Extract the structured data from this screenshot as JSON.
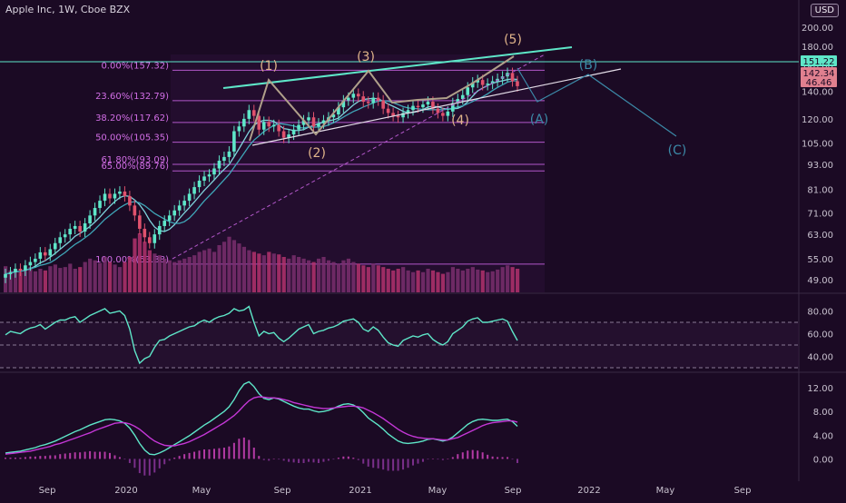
{
  "header": {
    "title": "Apple Inc, 1W, Cboe BZX",
    "currency": "USD"
  },
  "chart_data": [
    {
      "type": "candlestick",
      "title": "Apple Inc, 1W, Cboe BZX",
      "x_ticks": [
        "Sep",
        "2020",
        "May",
        "Sep",
        "2021",
        "May",
        "Sep",
        "2022",
        "May",
        "Sep"
      ],
      "y_ticks": [
        49.0,
        55.0,
        63.0,
        71.0,
        81.0,
        93.0,
        105.0,
        120.0,
        140.0,
        160.0,
        180.0,
        200.0
      ],
      "y_scale": "log",
      "ylim": [
        47,
        200
      ],
      "price_labels": [
        {
          "value": "151.22",
          "kind": "last_price",
          "color": "#5ee6c8"
        },
        {
          "value": "142.34",
          "kind": "indicator",
          "color": "#e0808f"
        },
        {
          "value": "46.46",
          "kind": "indicator",
          "color": "#e0808f"
        }
      ],
      "fibonacci_levels": [
        {
          "label": "0.00%(157.32)",
          "value": 157.32
        },
        {
          "label": "23.60%(132.79)",
          "value": 132.79
        },
        {
          "label": "38.20%(117.62)",
          "value": 117.62
        },
        {
          "label": "50.00%(105.35)",
          "value": 105.35
        },
        {
          "label": "61.80%(93.09)",
          "value": 93.09
        },
        {
          "label": "65.00%(89.76)",
          "value": 89.76
        },
        {
          "label": "100.00%(53.38)",
          "value": 53.38
        }
      ],
      "wave_labels": [
        "(1)",
        "(2)",
        "(3)",
        "(4)",
        "(5)",
        "(A)",
        "(B)",
        "(C)"
      ],
      "weekly_close": [
        50.5,
        51,
        52,
        51.5,
        53,
        54,
        55,
        57,
        56,
        58,
        60,
        62,
        63,
        65,
        66,
        64,
        67,
        70,
        73,
        76,
        79,
        77,
        79,
        80,
        78,
        74,
        70,
        65,
        62,
        60,
        63,
        66,
        68,
        70,
        72,
        74,
        76,
        79,
        82,
        85,
        87,
        88,
        91,
        95,
        97,
        100,
        112,
        115,
        120,
        126,
        122,
        113,
        118,
        115,
        116,
        112,
        108,
        110,
        113,
        116,
        119,
        121,
        115,
        117,
        119,
        121,
        123,
        128,
        133,
        135,
        138,
        136,
        132,
        131,
        135,
        133,
        127,
        124,
        122,
        121,
        124,
        126,
        129,
        128,
        130,
        132,
        127,
        124,
        122,
        125,
        131,
        134,
        137,
        143,
        147,
        149,
        145,
        146,
        148,
        150,
        152,
        155,
        148,
        144
      ],
      "weekly_volume": [
        31,
        26,
        28,
        24,
        27,
        30,
        25,
        28,
        26,
        31,
        33,
        29,
        30,
        34,
        28,
        30,
        36,
        40,
        38,
        35,
        42,
        36,
        33,
        30,
        36,
        42,
        64,
        70,
        60,
        50,
        46,
        44,
        40,
        38,
        36,
        38,
        40,
        42,
        44,
        48,
        50,
        52,
        48,
        56,
        60,
        66,
        62,
        58,
        54,
        50,
        48,
        46,
        44,
        48,
        46,
        45,
        42,
        40,
        44,
        42,
        40,
        38,
        36,
        40,
        42,
        38,
        36,
        34,
        38,
        40,
        36,
        34,
        32,
        30,
        34,
        32,
        30,
        28,
        26,
        28,
        30,
        26,
        24,
        26,
        24,
        28,
        26,
        24,
        22,
        24,
        30,
        28,
        26,
        28,
        30,
        27,
        26,
        24,
        25,
        27,
        30,
        32,
        30,
        28
      ],
      "rsi": {
        "levels": [
          70,
          50,
          30
        ],
        "ylim": [
          30,
          90
        ],
        "y_ticks": [
          40.0,
          60.0,
          80.0
        ],
        "values": [
          59,
          62,
          61,
          60,
          63,
          65,
          66,
          68,
          64,
          67,
          70,
          72,
          72,
          74,
          75,
          70,
          73,
          76,
          78,
          80,
          82,
          78,
          79,
          80,
          76,
          64,
          45,
          34,
          38,
          40,
          48,
          54,
          55,
          58,
          60,
          62,
          64,
          66,
          67,
          70,
          72,
          70,
          73,
          75,
          76,
          78,
          82,
          80,
          81,
          84,
          70,
          58,
          62,
          60,
          61,
          56,
          53,
          56,
          60,
          64,
          66,
          68,
          60,
          62,
          63,
          65,
          66,
          68,
          71,
          72,
          73,
          70,
          64,
          62,
          66,
          63,
          57,
          52,
          50,
          49,
          54,
          56,
          58,
          57,
          59,
          60,
          55,
          52,
          50,
          53,
          60,
          63,
          66,
          71,
          73,
          74,
          70,
          70,
          71,
          72,
          73,
          71,
          62,
          54
        ]
      },
      "macd": {
        "y_ticks": [
          0.0,
          4.0,
          8.0,
          12.0
        ],
        "ylim": [
          -3,
          14
        ],
        "macd": [
          1,
          1.1,
          1.2,
          1.3,
          1.5,
          1.7,
          1.9,
          2.2,
          2.4,
          2.7,
          3,
          3.4,
          3.8,
          4.2,
          4.6,
          4.9,
          5.3,
          5.7,
          6,
          6.3,
          6.6,
          6.7,
          6.6,
          6.4,
          6,
          5.2,
          4,
          2.6,
          1.5,
          0.8,
          0.7,
          1,
          1.4,
          1.9,
          2.4,
          2.9,
          3.4,
          3.9,
          4.5,
          5.1,
          5.7,
          6.2,
          6.8,
          7.4,
          8,
          8.8,
          10,
          11.5,
          12.6,
          13,
          12.2,
          11,
          10.2,
          10,
          10.3,
          10.1,
          9.7,
          9.3,
          8.9,
          8.6,
          8.4,
          8.4,
          8.1,
          7.9,
          8,
          8.2,
          8.5,
          8.9,
          9.2,
          9.3,
          9.1,
          8.6,
          7.8,
          6.9,
          6.3,
          5.7,
          5,
          4.2,
          3.6,
          3,
          2.7,
          2.6,
          2.7,
          2.8,
          3,
          3.3,
          3.4,
          3.2,
          3,
          3.2,
          3.7,
          4.4,
          5.1,
          5.8,
          6.3,
          6.6,
          6.7,
          6.6,
          6.5,
          6.5,
          6.6,
          6.7,
          6.3,
          5.5
        ],
        "signal": [
          0.8,
          0.9,
          1,
          1.1,
          1.2,
          1.3,
          1.5,
          1.7,
          1.9,
          2.1,
          2.4,
          2.6,
          2.9,
          3.2,
          3.5,
          3.8,
          4.1,
          4.4,
          4.8,
          5.1,
          5.4,
          5.7,
          6,
          6.1,
          6.1,
          5.9,
          5.5,
          5,
          4.3,
          3.6,
          3,
          2.6,
          2.3,
          2.2,
          2.2,
          2.4,
          2.6,
          2.9,
          3.3,
          3.7,
          4.1,
          4.6,
          5.1,
          5.6,
          6.1,
          6.7,
          7.3,
          8.1,
          9,
          9.8,
          10.3,
          10.5,
          10.4,
          10.3,
          10.3,
          10.2,
          10,
          9.8,
          9.5,
          9.3,
          9.1,
          8.9,
          8.7,
          8.6,
          8.5,
          8.5,
          8.6,
          8.7,
          8.8,
          8.9,
          8.9,
          8.8,
          8.6,
          8.2,
          7.8,
          7.3,
          6.8,
          6.2,
          5.6,
          5,
          4.5,
          4.1,
          3.8,
          3.6,
          3.5,
          3.4,
          3.4,
          3.3,
          3.2,
          3.2,
          3.4,
          3.6,
          4,
          4.4,
          4.8,
          5.2,
          5.6,
          5.9,
          6.1,
          6.2,
          6.3,
          6.4,
          6.4,
          6.2
        ]
      }
    }
  ]
}
